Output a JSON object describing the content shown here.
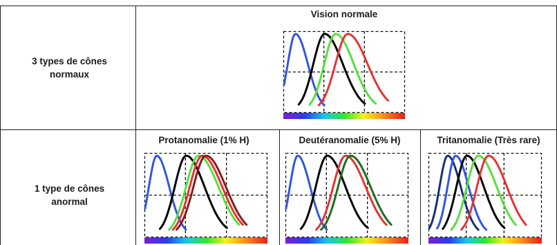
{
  "rows": [
    {
      "label_line1": "3 types de cônes",
      "label_line2": "normaux"
    },
    {
      "label_line1": "1 type de cônes",
      "label_line2": "anormal"
    }
  ],
  "panels": [
    {
      "id": "normal",
      "title": "Vision normale",
      "curves": [
        {
          "cone": "S",
          "peak": 0.1,
          "width": 0.075,
          "color": "#3355e0"
        },
        {
          "cone": "M",
          "peak": 0.34,
          "width": 0.11,
          "color": "#000000"
        },
        {
          "cone": "L-shifted",
          "peak": 0.43,
          "width": 0.11,
          "color": "#55e03a"
        },
        {
          "cone": "L",
          "peak": 0.53,
          "width": 0.12,
          "color": "#e53333"
        }
      ]
    },
    {
      "id": "protanomalie",
      "title": "Protanomalie (1% H)",
      "curves": [
        {
          "cone": "S",
          "peak": 0.1,
          "width": 0.075,
          "color": "#3355e0"
        },
        {
          "cone": "M",
          "peak": 0.34,
          "width": 0.11,
          "color": "#000000"
        },
        {
          "cone": "M-prime",
          "peak": 0.44,
          "width": 0.12,
          "color": "#55e03a"
        },
        {
          "cone": "L-anomalous",
          "peak": 0.47,
          "width": 0.12,
          "color": "#e53333"
        },
        {
          "cone": "L-dark",
          "peak": 0.5,
          "width": 0.12,
          "color": "#8a1a1a"
        }
      ]
    },
    {
      "id": "deuteranomalie",
      "title": "Deutéranomalie (5% H)",
      "curves": [
        {
          "cone": "S",
          "peak": 0.1,
          "width": 0.075,
          "color": "#3355e0"
        },
        {
          "cone": "M",
          "peak": 0.34,
          "width": 0.11,
          "color": "#000000"
        },
        {
          "cone": "L",
          "peak": 0.49,
          "width": 0.12,
          "color": "#e53333"
        },
        {
          "cone": "M-dark",
          "peak": 0.53,
          "width": 0.12,
          "color": "#1f6b1f"
        }
      ]
    },
    {
      "id": "tritanomalie",
      "title": "Tritanomalie (Très rare)",
      "curves": [
        {
          "cone": "S-dark",
          "peak": 0.17,
          "width": 0.085,
          "color": "#15307a"
        },
        {
          "cone": "S",
          "peak": 0.24,
          "width": 0.085,
          "color": "#3355e0"
        },
        {
          "cone": "M",
          "peak": 0.34,
          "width": 0.11,
          "color": "#000000"
        },
        {
          "cone": "M-prime",
          "peak": 0.44,
          "width": 0.12,
          "color": "#55e03a"
        },
        {
          "cone": "L",
          "peak": 0.53,
          "width": 0.12,
          "color": "#e53333"
        }
      ]
    }
  ]
}
